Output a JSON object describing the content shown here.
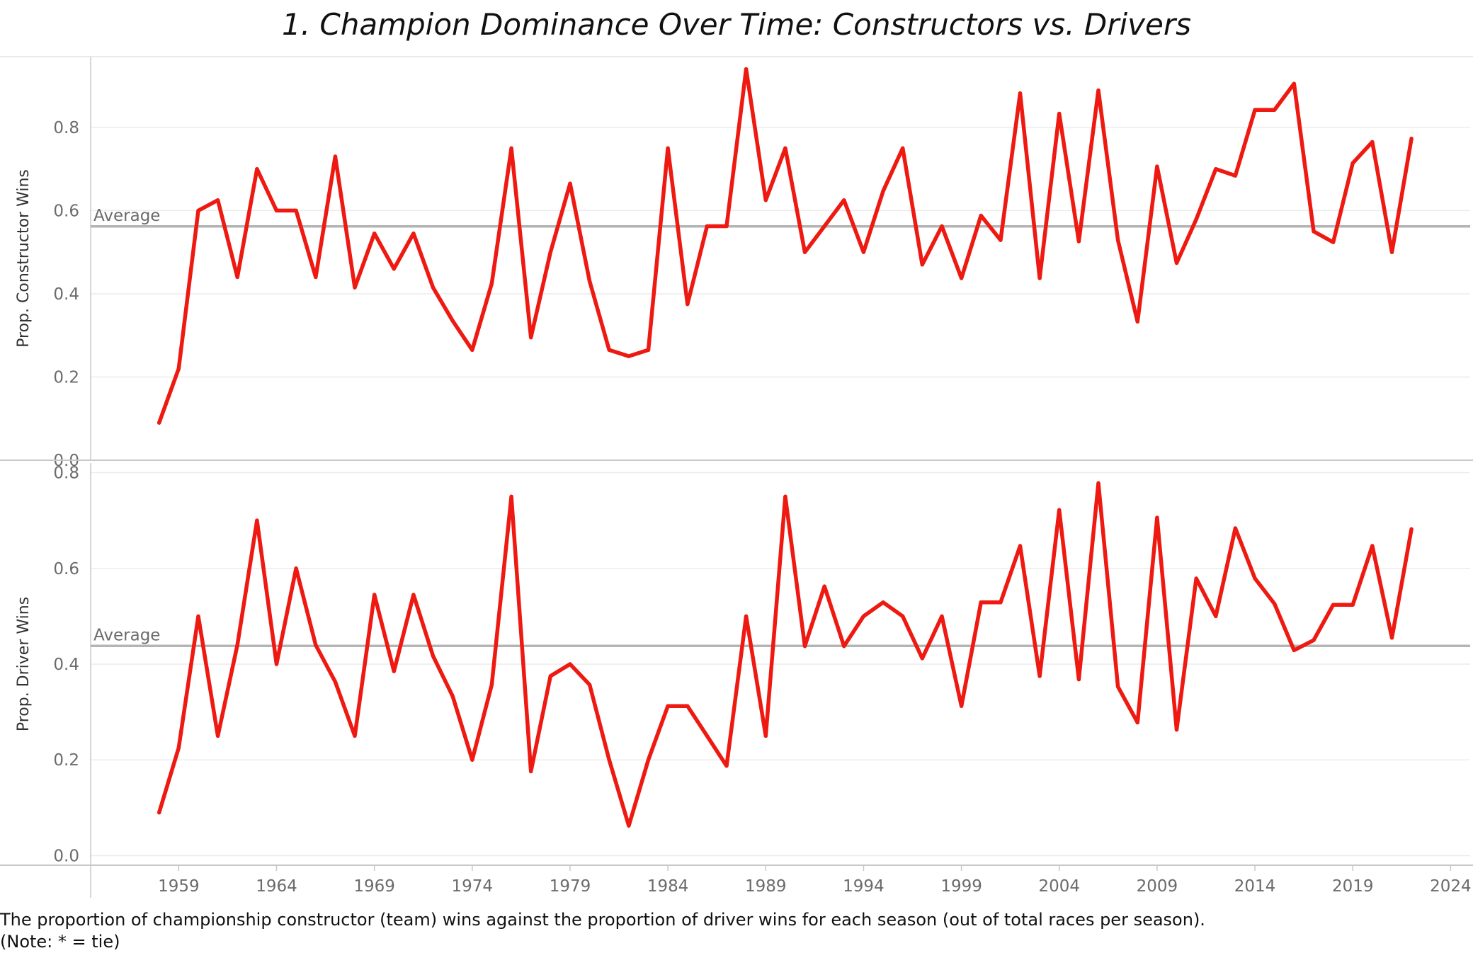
{
  "title": "1. Champion Dominance Over Time: Constructors vs. Drivers",
  "caption": {
    "line1": "The proportion of championship constructor (team) wins against the proportion of driver wins for each season (out of total races per season).",
    "line2": "(Note: * = tie)"
  },
  "colors": {
    "line": "#ee1a12",
    "average": "#b4b4b4",
    "grid": "#ececec",
    "axis": "#c8c8c8"
  },
  "chart_data": [
    {
      "type": "line",
      "ylabel": "Prop. Constructor Wins",
      "ylim": [
        0,
        0.97
      ],
      "yticks": [
        0.0,
        0.2,
        0.4,
        0.6,
        0.8
      ],
      "ytick_labels": [
        "0.0",
        "0.2",
        "0.4",
        "0.6",
        "0.8"
      ],
      "average": 0.562,
      "average_label": "Average",
      "grid": true,
      "x": [
        1958,
        1959,
        1960,
        1961,
        1962,
        1963,
        1964,
        1965,
        1966,
        1967,
        1968,
        1969,
        1970,
        1971,
        1972,
        1973,
        1974,
        1975,
        1976,
        1977,
        1978,
        1979,
        1980,
        1981,
        1982,
        1983,
        1984,
        1985,
        1986,
        1987,
        1988,
        1989,
        1990,
        1991,
        1992,
        1993,
        1994,
        1995,
        1996,
        1997,
        1998,
        1999,
        2000,
        2001,
        2002,
        2003,
        2004,
        2005,
        2006,
        2007,
        2008,
        2009,
        2010,
        2011,
        2012,
        2013,
        2014,
        2015,
        2016,
        2017,
        2018,
        2019,
        2020,
        2021,
        2022
      ],
      "values": [
        0.09,
        0.22,
        0.6,
        0.625,
        0.44,
        0.7,
        0.6,
        0.6,
        0.44,
        0.73,
        0.415,
        0.545,
        0.46,
        0.545,
        0.415,
        0.335,
        0.265,
        0.425,
        0.75,
        0.295,
        0.5,
        0.665,
        0.43,
        0.265,
        0.25,
        0.265,
        0.75,
        0.375,
        0.5625,
        0.5625,
        0.94,
        0.625,
        0.75,
        0.5,
        0.5625,
        0.625,
        0.5,
        0.647,
        0.75,
        0.47,
        0.5625,
        0.4375,
        0.588,
        0.529,
        0.882,
        0.4375,
        0.833,
        0.526,
        0.889,
        0.529,
        0.333,
        0.706,
        0.474,
        0.579,
        0.7,
        0.684,
        0.842,
        0.842,
        0.905,
        0.55,
        0.524,
        0.714,
        0.765,
        0.5,
        0.773
      ]
    },
    {
      "type": "line",
      "ylabel": "Prop. Driver Wins",
      "ylim": [
        -0.02,
        0.82
      ],
      "yticks": [
        0.0,
        0.2,
        0.4,
        0.6,
        0.8
      ],
      "ytick_labels": [
        "0.0",
        "0.2",
        "0.4",
        "0.6",
        "0.8"
      ],
      "average": 0.438,
      "average_label": "Average",
      "grid": true,
      "x": [
        1958,
        1959,
        1960,
        1961,
        1962,
        1963,
        1964,
        1965,
        1966,
        1967,
        1968,
        1969,
        1970,
        1971,
        1972,
        1973,
        1974,
        1975,
        1976,
        1977,
        1978,
        1979,
        1980,
        1981,
        1982,
        1983,
        1984,
        1985,
        1986,
        1987,
        1988,
        1989,
        1990,
        1991,
        1992,
        1993,
        1994,
        1995,
        1996,
        1997,
        1998,
        1999,
        2000,
        2001,
        2002,
        2003,
        2004,
        2005,
        2006,
        2007,
        2008,
        2009,
        2010,
        2011,
        2012,
        2013,
        2014,
        2015,
        2016,
        2017,
        2018,
        2019,
        2020,
        2021,
        2022
      ],
      "values": [
        0.09,
        0.225,
        0.5,
        0.25,
        0.44,
        0.7,
        0.4,
        0.6,
        0.44,
        0.363,
        0.25,
        0.545,
        0.385,
        0.545,
        0.417,
        0.333,
        0.2,
        0.357,
        0.75,
        0.176,
        0.375,
        0.4,
        0.357,
        0.2,
        0.0625,
        0.2,
        0.3125,
        0.3125,
        0.25,
        0.1875,
        0.5,
        0.25,
        0.75,
        0.4375,
        0.5625,
        0.4375,
        0.5,
        0.529,
        0.5,
        0.412,
        0.5,
        0.3125,
        0.529,
        0.529,
        0.647,
        0.375,
        0.722,
        0.368,
        0.778,
        0.353,
        0.278,
        0.706,
        0.263,
        0.579,
        0.5,
        0.684,
        0.579,
        0.526,
        0.429,
        0.45,
        0.524,
        0.524,
        0.647,
        0.455,
        0.682
      ]
    }
  ],
  "x_axis": {
    "xlim": [
      1954.5,
      2025
    ],
    "ticks": [
      1959,
      1964,
      1969,
      1974,
      1979,
      1984,
      1989,
      1994,
      1999,
      2004,
      2009,
      2014,
      2019,
      2024
    ],
    "tick_labels": [
      "1959",
      "1964",
      "1969",
      "1974",
      "1979",
      "1984",
      "1989",
      "1994",
      "1999",
      "2004",
      "2009",
      "2014",
      "2019",
      "2024"
    ]
  }
}
